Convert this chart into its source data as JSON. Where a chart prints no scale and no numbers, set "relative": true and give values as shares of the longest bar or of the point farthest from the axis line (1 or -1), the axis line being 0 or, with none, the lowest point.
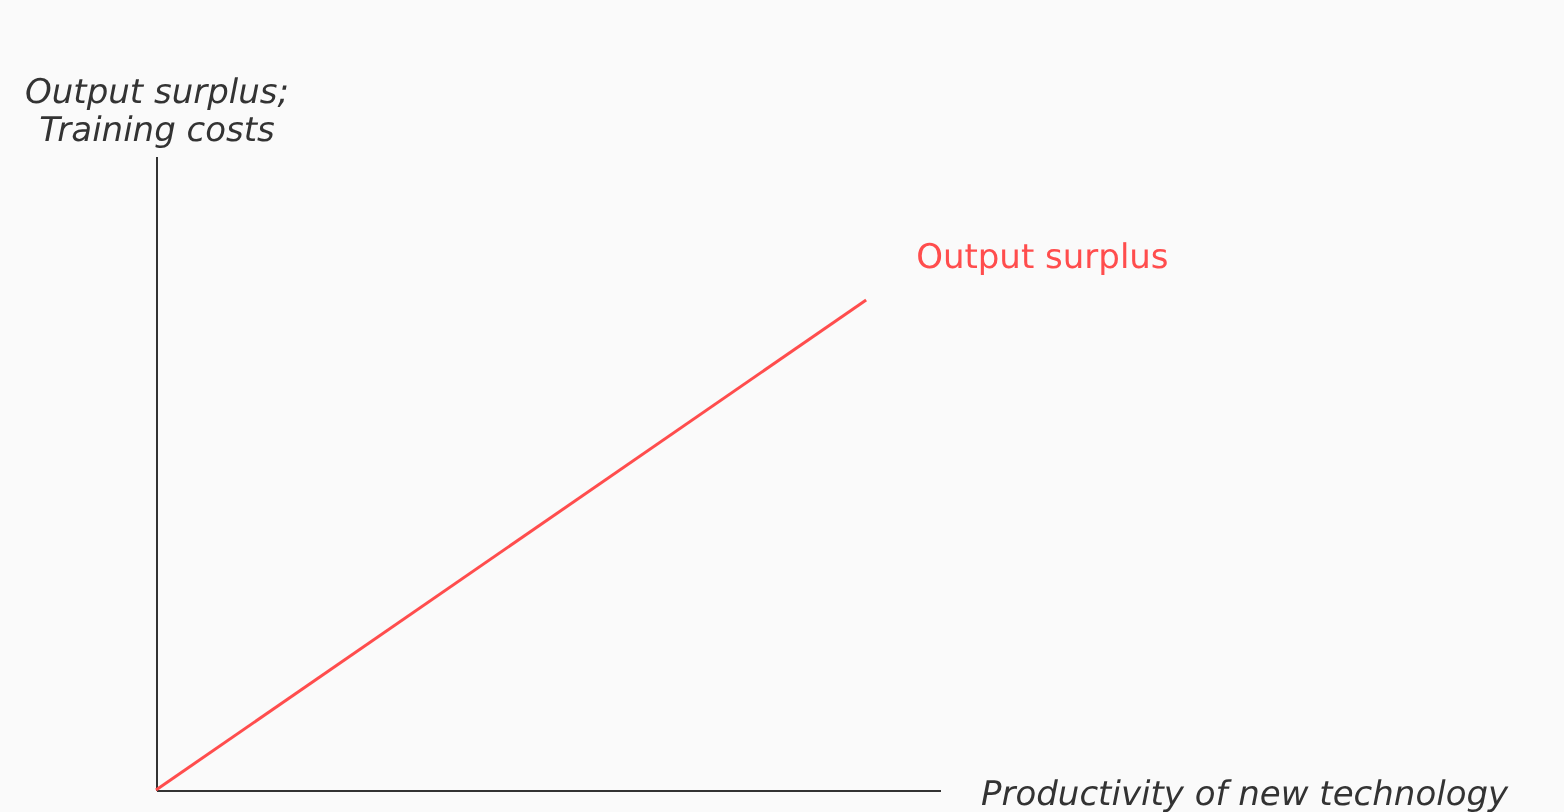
{
  "chart_data": {
    "type": "line",
    "relative": true,
    "xlabel": "Productivity of new technology",
    "ylabel": "Output surplus;\nTraining costs",
    "categories": [
      null,
      null
    ],
    "series": [
      {
        "name": "Output surplus",
        "color": "#ff4d4d",
        "values": [
          0,
          1
        ]
      }
    ],
    "grid": false,
    "tick_labels": false,
    "marker": "none",
    "line_style": "solid"
  }
}
